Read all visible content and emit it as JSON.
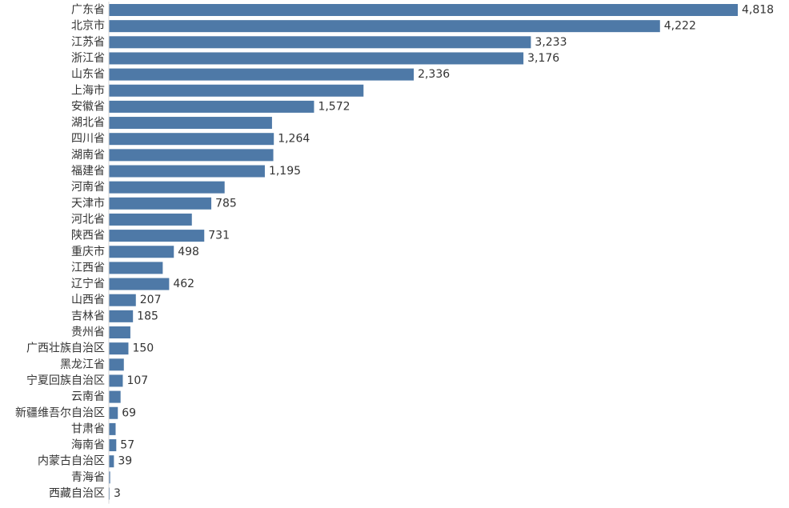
{
  "chart_data": {
    "type": "bar",
    "orientation": "horizontal",
    "title": "",
    "xlabel": "",
    "ylabel": "",
    "xlim": [
      0,
      4818
    ],
    "grid": false,
    "bar_color": "#4e79a7",
    "categories": [
      "广东省",
      "北京市",
      "江苏省",
      "浙江省",
      "山东省",
      "上海市",
      "安徽省",
      "湖北省",
      "四川省",
      "湖南省",
      "福建省",
      "河南省",
      "天津市",
      "河北省",
      "陕西省",
      "重庆市",
      "江西省",
      "辽宁省",
      "山西省",
      "吉林省",
      "贵州省",
      "广西壮族自治区",
      "黑龙江省",
      "宁夏回族自治区",
      "云南省",
      "新疆维吾尔自治区",
      "甘肃省",
      "海南省",
      "内蒙古自治区",
      "青海省",
      "西藏自治区"
    ],
    "values": [
      4818,
      4222,
      3233,
      3176,
      2336,
      1951,
      1572,
      1250,
      1264,
      1260,
      1195,
      887,
      785,
      636,
      731,
      498,
      413,
      462,
      207,
      185,
      165,
      150,
      115,
      107,
      90,
      69,
      52,
      57,
      39,
      10,
      3
    ],
    "data_labels": [
      "4,818",
      "4,222",
      "3,233",
      "3,176",
      "2,336",
      null,
      "1,572",
      null,
      "1,264",
      null,
      "1,195",
      null,
      "785",
      null,
      "731",
      "498",
      null,
      "462",
      "207",
      "185",
      null,
      "150",
      null,
      "107",
      null,
      "69",
      null,
      "57",
      "39",
      null,
      "3"
    ]
  }
}
